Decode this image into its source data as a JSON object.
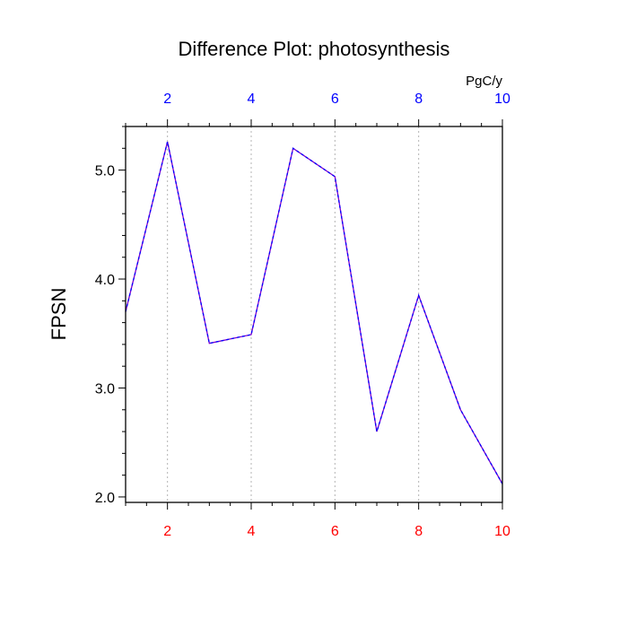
{
  "chart_data": {
    "type": "line",
    "title": "Difference Plot: photosynthesis",
    "ylabel": "FPSN",
    "units": "PgC/y",
    "x": [
      1,
      2,
      3,
      4,
      5,
      6,
      7,
      8,
      9,
      10
    ],
    "series": [
      {
        "values": [
          3.7,
          5.26,
          3.41,
          3.49,
          5.2,
          4.94,
          2.6,
          3.85,
          2.8,
          2.12
        ],
        "color": "#7d00cc",
        "dash_color": "#0000ff"
      }
    ],
    "xlim": [
      1,
      10
    ],
    "ylim": [
      1.95,
      5.4
    ],
    "xticks": [
      2,
      4,
      6,
      8,
      10
    ],
    "xtick_labels": [
      "2",
      "4",
      "6",
      "8",
      "10"
    ],
    "yticks": [
      2.0,
      3.0,
      4.0,
      5.0
    ],
    "ytick_labels": [
      "2.0",
      "3.0",
      "4.0",
      "5.0"
    ],
    "bottom_tick_color": "#ff0000",
    "top_tick_color": "#0000ff",
    "grid": "vertical dotted",
    "legend": "none"
  }
}
